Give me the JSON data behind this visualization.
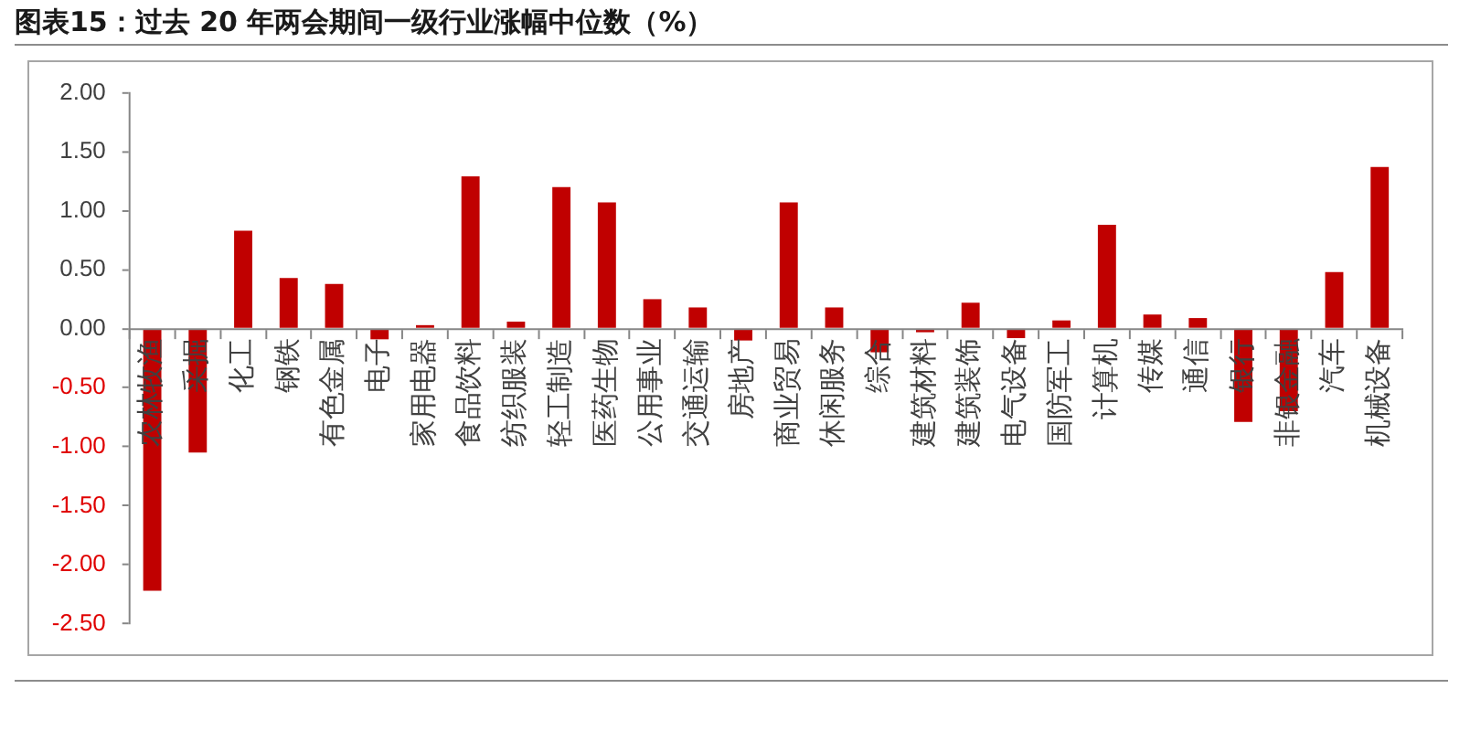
{
  "chart_data": {
    "type": "bar",
    "title": "图表15：过去 20 年两会期间一级行业涨幅中位数（%）",
    "categories": [
      "农林牧渔",
      "采掘",
      "化工",
      "钢铁",
      "有色金属",
      "电子",
      "家用电器",
      "食品饮料",
      "纺织服装",
      "轻工制造",
      "医药生物",
      "公用事业",
      "交通运输",
      "房地产",
      "商业贸易",
      "休闲服务",
      "综合",
      "建筑材料",
      "建筑装饰",
      "电气设备",
      "国防军工",
      "计算机",
      "传媒",
      "通信",
      "银行",
      "非银金融",
      "汽车",
      "机械设备"
    ],
    "values": [
      -2.22,
      -1.05,
      0.83,
      0.43,
      0.38,
      -0.09,
      0.03,
      1.29,
      0.06,
      1.2,
      1.07,
      0.25,
      0.18,
      -0.1,
      1.07,
      0.18,
      -0.2,
      -0.03,
      0.22,
      -0.08,
      0.07,
      0.88,
      0.12,
      0.09,
      -0.79,
      -0.7,
      0.48,
      1.37
    ],
    "color": "#c00000",
    "ylim": [
      -2.5,
      2
    ],
    "yticks": [
      {
        "value": -2.5,
        "label": "-2.50"
      },
      {
        "value": -2,
        "label": "-2.00"
      },
      {
        "value": -1.5,
        "label": "-1.50"
      },
      {
        "value": -1,
        "label": "-1.00"
      },
      {
        "value": -0.5,
        "label": "-0.50"
      },
      {
        "value": 0,
        "label": "0.00"
      },
      {
        "value": 0.5,
        "label": "0.50"
      },
      {
        "value": 1,
        "label": "1.00"
      },
      {
        "value": 1.5,
        "label": "1.50"
      },
      {
        "value": 2,
        "label": "2.00"
      }
    ]
  }
}
